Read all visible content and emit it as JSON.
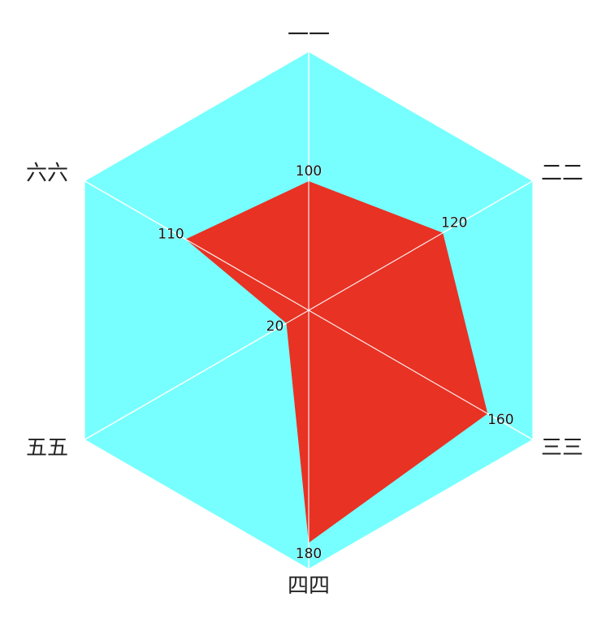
{
  "chart_data": {
    "type": "radar",
    "categories": [
      "一一",
      "二二",
      "三三",
      "四四",
      "五五",
      "六六"
    ],
    "values": [
      100,
      120,
      160,
      180,
      20,
      110
    ],
    "data_labels": [
      "100",
      "120",
      "160",
      "180",
      "20",
      "110"
    ],
    "rlim": [
      0,
      200
    ],
    "grid": true,
    "background_color": "#77FFFF",
    "fill_color": "#E83224",
    "grid_color": "#FFFFFF"
  }
}
